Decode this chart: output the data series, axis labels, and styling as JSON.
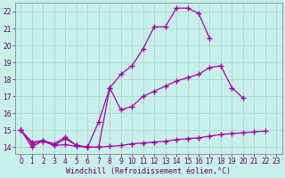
{
  "xlabel": "Windchill (Refroidissement éolien,°C)",
  "background_color": "#c8f0ea",
  "grid_color": "#a8d8d0",
  "line_color": "#aa00aa",
  "xlim": [
    -0.5,
    23.5
  ],
  "ylim": [
    13.6,
    22.5
  ],
  "xticks": [
    0,
    1,
    2,
    3,
    4,
    5,
    6,
    7,
    8,
    9,
    10,
    11,
    12,
    13,
    14,
    15,
    16,
    17,
    18,
    19,
    20,
    21,
    22,
    23
  ],
  "yticks": [
    14,
    15,
    16,
    17,
    18,
    19,
    20,
    21,
    22
  ],
  "series1_x": [
    0,
    1,
    2,
    3,
    4,
    5,
    6,
    7,
    8,
    9,
    10,
    11,
    12,
    13,
    14,
    15,
    16,
    17,
    18,
    19,
    20
  ],
  "series1_y": [
    15.0,
    14.0,
    14.4,
    14.1,
    14.5,
    14.1,
    14.0,
    14.0,
    17.5,
    18.3,
    18.8,
    19.8,
    21.1,
    21.1,
    22.2,
    22.2,
    21.9,
    20.4,
    null,
    null,
    null
  ],
  "series2_x": [
    0,
    1,
    2,
    3,
    4,
    5,
    6,
    7,
    8,
    9,
    10,
    11,
    12,
    13,
    14,
    15,
    16,
    17,
    18,
    19,
    20,
    21,
    22
  ],
  "series2_y": [
    15.0,
    14.3,
    14.4,
    14.2,
    14.6,
    14.1,
    14.0,
    15.5,
    17.5,
    16.2,
    16.4,
    17.0,
    17.3,
    17.6,
    17.9,
    18.1,
    18.3,
    18.7,
    18.8,
    17.5,
    16.9,
    null,
    null
  ],
  "series3_x": [
    0,
    1,
    2,
    3,
    4,
    5,
    6,
    7,
    8,
    9,
    10,
    11,
    12,
    13,
    14,
    15,
    16,
    17,
    18,
    19,
    20,
    21,
    22
  ],
  "series3_y": [
    15.0,
    14.2,
    14.35,
    14.1,
    14.15,
    14.05,
    14.0,
    14.0,
    14.05,
    14.1,
    14.2,
    14.25,
    14.3,
    14.35,
    14.45,
    14.5,
    14.55,
    14.65,
    14.75,
    14.8,
    14.85,
    14.9,
    14.95
  ],
  "marker": "+",
  "markersize": 4,
  "linewidth": 0.9,
  "xlabel_fontsize": 6,
  "tick_fontsize": 5.5
}
